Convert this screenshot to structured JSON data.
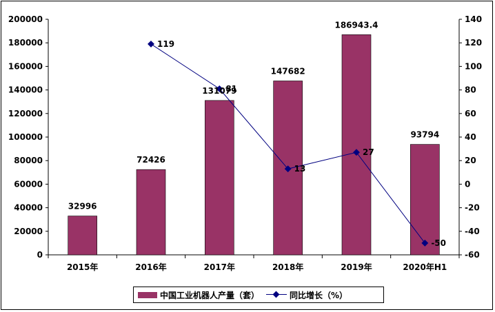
{
  "chart_data": {
    "type": "bar+line",
    "categories": [
      "2015年",
      "2016年",
      "2017年",
      "2018年",
      "2019年",
      "2020年H1"
    ],
    "series": [
      {
        "name": "中国工业机器人产量（套）",
        "type": "bar",
        "axis": "left",
        "color": "#993366",
        "values": [
          32996,
          72426,
          131079,
          147682,
          186943.4,
          93794
        ],
        "labels": [
          "32996",
          "72426",
          "131079",
          "147682",
          "186943.4",
          "93794"
        ]
      },
      {
        "name": "同比增长（%）",
        "type": "line",
        "axis": "right",
        "color": "#000080",
        "values": [
          null,
          119,
          81,
          13,
          27,
          -50
        ],
        "labels": [
          "",
          "119",
          "81",
          "13",
          "27",
          "-50"
        ]
      }
    ],
    "y_left": {
      "min": 0,
      "max": 200000,
      "step": 20000,
      "ticks": [
        "0",
        "20000",
        "40000",
        "60000",
        "80000",
        "100000",
        "120000",
        "140000",
        "160000",
        "180000",
        "200000"
      ]
    },
    "y_right": {
      "min": -60,
      "max": 140,
      "step": 20,
      "ticks": [
        "-60",
        "-40",
        "-20",
        "0",
        "20",
        "40",
        "60",
        "80",
        "100",
        "120",
        "140"
      ]
    },
    "grid": false,
    "legend_position": "bottom"
  }
}
